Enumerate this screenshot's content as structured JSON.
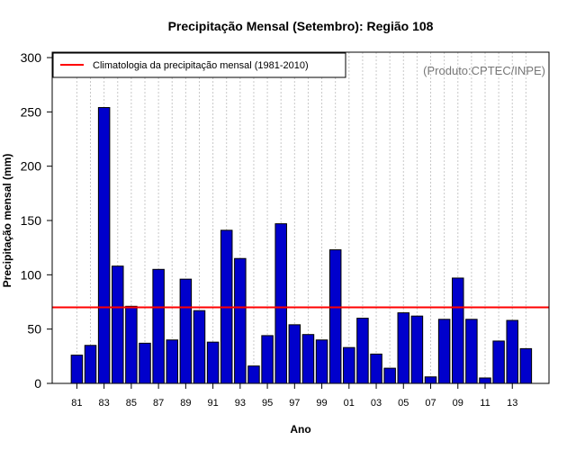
{
  "chart_data": {
    "type": "bar",
    "title": "Precipitação Mensal (Setembro): Região 108",
    "xlabel": "Ano",
    "ylabel": "Precipitação mensal (mm)",
    "ylim": [
      0,
      300
    ],
    "yticks": [
      0,
      50,
      100,
      150,
      200,
      250,
      300
    ],
    "categories": [
      "81",
      "82",
      "83",
      "84",
      "85",
      "86",
      "87",
      "88",
      "89",
      "90",
      "91",
      "92",
      "93",
      "94",
      "95",
      "96",
      "97",
      "98",
      "99",
      "00",
      "01",
      "02",
      "03",
      "04",
      "05",
      "06",
      "07",
      "08",
      "09",
      "10",
      "11",
      "12",
      "13",
      "14"
    ],
    "tick_labels": [
      "81",
      "83",
      "85",
      "87",
      "89",
      "91",
      "93",
      "95",
      "97",
      "99",
      "01",
      "03",
      "05",
      "07",
      "09",
      "11",
      "13"
    ],
    "values": [
      26,
      35,
      254,
      108,
      71,
      37,
      105,
      40,
      96,
      67,
      38,
      141,
      115,
      16,
      44,
      147,
      54,
      45,
      40,
      123,
      33,
      60,
      27,
      14,
      65,
      62,
      6,
      59,
      97,
      59,
      5,
      39,
      58,
      32
    ],
    "bar_color": "#0000cc",
    "climatology": {
      "label": "Climatologia da precipitação mensal (1981-2010)",
      "value": 70,
      "color": "#ff0000"
    },
    "legend_position": "top-left",
    "grid": "vertical dotted",
    "credit": "(Produto:CPTEC/INPE)"
  }
}
